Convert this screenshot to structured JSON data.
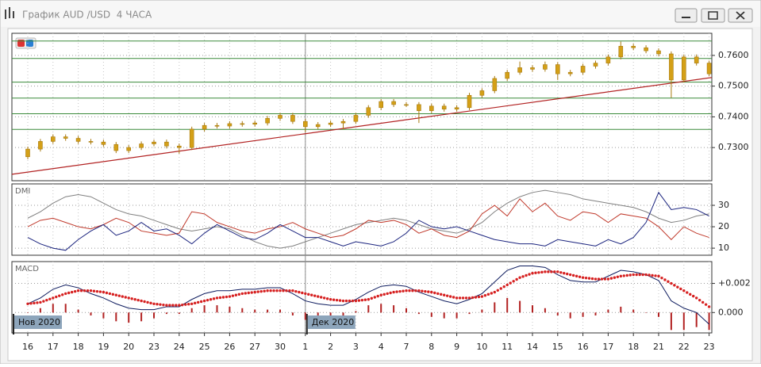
{
  "window": {
    "title": "График AUD /USD  4 ЧАСА"
  },
  "chart_data": [
    {
      "type": "candlestick",
      "ylim": [
        0.7192,
        0.7672
      ],
      "yticks": [
        {
          "value": 0.73,
          "label": "0.7300"
        },
        {
          "value": 0.74,
          "label": "0.7400"
        },
        {
          "value": 0.75,
          "label": "0.7500"
        },
        {
          "value": 0.76,
          "label": "0.7600"
        }
      ],
      "grid": true,
      "color": "#d4a017",
      "open": [
        0.727,
        0.7295,
        0.732,
        0.7335,
        0.733,
        0.732,
        0.7318,
        0.731,
        0.729,
        0.73,
        0.7312,
        0.7318,
        0.7305,
        0.73,
        0.736,
        0.7372,
        0.737,
        0.7378,
        0.7376,
        0.738,
        0.7395,
        0.7405,
        0.7385,
        0.7368,
        0.7375,
        0.738,
        0.7385,
        0.7405,
        0.743,
        0.745,
        0.744,
        0.744,
        0.742,
        0.7435,
        0.7425,
        0.743,
        0.747,
        0.7485,
        0.7525,
        0.7545,
        0.756,
        0.7555,
        0.757,
        0.754,
        0.7545,
        0.7565,
        0.7575,
        0.7595,
        0.763,
        0.7625,
        0.7615,
        0.7605,
        0.752,
        0.7595,
        0.7575
      ],
      "high": [
        0.7303,
        0.7328,
        0.7343,
        0.7343,
        0.7338,
        0.7328,
        0.7326,
        0.7318,
        0.7308,
        0.732,
        0.7326,
        0.7326,
        0.7313,
        0.7368,
        0.738,
        0.738,
        0.7386,
        0.7386,
        0.7388,
        0.7403,
        0.7413,
        0.7413,
        0.7393,
        0.7383,
        0.7388,
        0.7393,
        0.7413,
        0.7438,
        0.7458,
        0.7458,
        0.7448,
        0.7448,
        0.7443,
        0.7443,
        0.7438,
        0.7478,
        0.7493,
        0.7533,
        0.7553,
        0.758,
        0.7568,
        0.758,
        0.7578,
        0.7553,
        0.7573,
        0.7583,
        0.7603,
        0.7645,
        0.7638,
        0.7633,
        0.7623,
        0.7613,
        0.7603,
        0.7603,
        0.7583
      ],
      "low": [
        0.7262,
        0.7287,
        0.7312,
        0.7322,
        0.7312,
        0.731,
        0.7302,
        0.7282,
        0.7282,
        0.7292,
        0.7304,
        0.7297,
        0.728,
        0.7292,
        0.7352,
        0.7362,
        0.7362,
        0.7368,
        0.7368,
        0.7372,
        0.7387,
        0.7377,
        0.735,
        0.736,
        0.7367,
        0.736,
        0.7377,
        0.7397,
        0.7422,
        0.7432,
        0.7432,
        0.738,
        0.7412,
        0.7417,
        0.7417,
        0.7422,
        0.7462,
        0.7477,
        0.7517,
        0.7537,
        0.7547,
        0.7547,
        0.752,
        0.7532,
        0.7537,
        0.7557,
        0.7567,
        0.7587,
        0.7617,
        0.7607,
        0.7597,
        0.7462,
        0.7512,
        0.7567,
        0.7532
      ],
      "close": [
        0.7295,
        0.732,
        0.7335,
        0.733,
        0.732,
        0.7318,
        0.731,
        0.729,
        0.73,
        0.7312,
        0.7318,
        0.7305,
        0.73,
        0.736,
        0.7372,
        0.737,
        0.7378,
        0.7376,
        0.738,
        0.7395,
        0.7405,
        0.7385,
        0.7368,
        0.7375,
        0.738,
        0.7385,
        0.7405,
        0.743,
        0.745,
        0.744,
        0.744,
        0.742,
        0.7435,
        0.7425,
        0.743,
        0.747,
        0.7485,
        0.7525,
        0.7545,
        0.756,
        0.7555,
        0.757,
        0.754,
        0.7545,
        0.7565,
        0.7575,
        0.7595,
        0.763,
        0.7625,
        0.7615,
        0.7605,
        0.752,
        0.7595,
        0.7575,
        0.754
      ],
      "levels": [
        0.7647,
        0.759,
        0.7513,
        0.7461,
        0.741,
        0.7359
      ],
      "level_color": "#3a8a3a",
      "trendline": [
        0.7213,
        0.7528
      ],
      "trendline_color": "#b22222"
    },
    {
      "type": "line",
      "title": "DMI",
      "ylim": [
        6.7,
        40
      ],
      "yticks": [
        10,
        20,
        30
      ],
      "grid": true,
      "series": [
        {
          "color": "#808080",
          "values": [
            24,
            27,
            31,
            34,
            35,
            34,
            31,
            28,
            26,
            25,
            23,
            21,
            19,
            18,
            19,
            20,
            19,
            16,
            13,
            11,
            10,
            11,
            13,
            15,
            17,
            19,
            21,
            22,
            23,
            24,
            23,
            21,
            19,
            18,
            17,
            19,
            22,
            27,
            31,
            34,
            36,
            37,
            36,
            35,
            33,
            32,
            31,
            30,
            29,
            27,
            24,
            22,
            23,
            25,
            26
          ]
        },
        {
          "color": "#c0392b",
          "values": [
            20,
            23,
            24,
            22,
            20,
            19,
            21,
            24,
            22,
            18,
            17,
            16,
            17,
            27,
            26,
            22,
            20,
            18,
            17,
            19,
            20,
            22,
            19,
            17,
            15,
            16,
            19,
            23,
            22,
            23,
            21,
            17,
            19,
            16,
            15,
            18,
            26,
            30,
            25,
            33,
            27,
            31,
            25,
            23,
            27,
            26,
            22,
            26,
            25,
            24,
            20,
            14,
            20,
            17,
            15
          ]
        },
        {
          "color": "#1a237e",
          "values": [
            15,
            12,
            10,
            9,
            14,
            18,
            21,
            16,
            18,
            22,
            18,
            19,
            16,
            12,
            17,
            21,
            18,
            15,
            14,
            17,
            21,
            18,
            15,
            15,
            13,
            11,
            13,
            12,
            11,
            13,
            17,
            23,
            20,
            19,
            20,
            18,
            16,
            14,
            13,
            12,
            12,
            11,
            14,
            13,
            12,
            11,
            14,
            12,
            15,
            22,
            36,
            28,
            29,
            28,
            25
          ]
        }
      ]
    },
    {
      "type": "line",
      "title": "MACD",
      "ylim": [
        -0.0014,
        0.0035
      ],
      "yticks": [
        {
          "value": 0,
          "label": "0.000"
        },
        {
          "value": 0.002,
          "label": "+0.002"
        }
      ],
      "grid": true,
      "categories": [
        "16",
        null,
        "17",
        null,
        "18",
        null,
        "19",
        null,
        "20",
        null,
        "23",
        null,
        "24",
        null,
        "25",
        null,
        "26",
        null,
        "27",
        null,
        "30",
        null,
        "1",
        null,
        "2",
        null,
        "3",
        null,
        "4",
        null,
        "7",
        null,
        "8",
        null,
        "9",
        null,
        "10",
        null,
        "11",
        null,
        "14",
        null,
        "15",
        null,
        "16",
        null,
        "17",
        null,
        "18",
        null,
        "21",
        null,
        "22",
        null,
        "23"
      ],
      "period_labels": [
        "Нов 2020",
        "Дек 2020"
      ],
      "series": [
        {
          "type": "bar",
          "color": "#b22222",
          "values": [
            0,
            0.0003,
            0.0006,
            0.0006,
            0.0002,
            -0.0002,
            -0.0004,
            -0.0006,
            -0.0007,
            -0.0006,
            -0.0004,
            -0.0001,
            -0.0001,
            0.0003,
            0.0005,
            0.0005,
            0.0004,
            0.0003,
            0.0002,
            0.0002,
            0.0002,
            -0.0002,
            -0.0005,
            -0.0005,
            -0.0004,
            -0.0003,
            0.0001,
            0.0005,
            0.0006,
            0.0005,
            0.0003,
            -0.0001,
            -0.0003,
            -0.0004,
            -0.0004,
            -0.0001,
            0.0002,
            0.0007,
            0.001,
            0.0008,
            0.0005,
            0.0003,
            -0.0002,
            -0.0004,
            -0.0003,
            -0.0002,
            0.0002,
            0.0004,
            0.0002,
            0,
            -0.0003,
            -0.0012,
            -0.0012,
            -0.001,
            -0.0012
          ]
        },
        {
          "type": "line",
          "color": "#0d1b5e",
          "values": [
            0.0006,
            0.001,
            0.0016,
            0.0019,
            0.0017,
            0.0013,
            0.001,
            0.0006,
            0.0003,
            0.0002,
            0.0002,
            0.0004,
            0.0004,
            0.0009,
            0.0013,
            0.0015,
            0.0015,
            0.0016,
            0.0016,
            0.0017,
            0.0017,
            0.0013,
            0.0008,
            0.0006,
            0.0005,
            0.0005,
            0.0009,
            0.0014,
            0.0018,
            0.0019,
            0.0018,
            0.0014,
            0.0011,
            0.0008,
            0.0006,
            0.0009,
            0.0013,
            0.0021,
            0.0029,
            0.0032,
            0.0032,
            0.0031,
            0.0026,
            0.0022,
            0.0021,
            0.0021,
            0.0025,
            0.0029,
            0.0028,
            0.0026,
            0.0022,
            0.0008,
            0.0003,
            0,
            -0.0008
          ]
        },
        {
          "type": "dots",
          "color": "#d62020",
          "values": [
            0.0006,
            0.0007,
            0.001,
            0.0013,
            0.0015,
            0.0015,
            0.0014,
            0.0012,
            0.001,
            0.0008,
            0.0006,
            0.0005,
            0.0005,
            0.0006,
            0.0008,
            0.001,
            0.0011,
            0.0013,
            0.0014,
            0.0015,
            0.0015,
            0.0015,
            0.0013,
            0.0011,
            0.0009,
            0.0008,
            0.0008,
            0.0009,
            0.0012,
            0.0014,
            0.0015,
            0.0015,
            0.0014,
            0.0012,
            0.001,
            0.001,
            0.0011,
            0.0014,
            0.0019,
            0.0024,
            0.0027,
            0.0028,
            0.0028,
            0.0026,
            0.0024,
            0.0023,
            0.0023,
            0.0025,
            0.0026,
            0.0026,
            0.0025,
            0.002,
            0.0015,
            0.001,
            0.0004
          ]
        }
      ]
    }
  ]
}
